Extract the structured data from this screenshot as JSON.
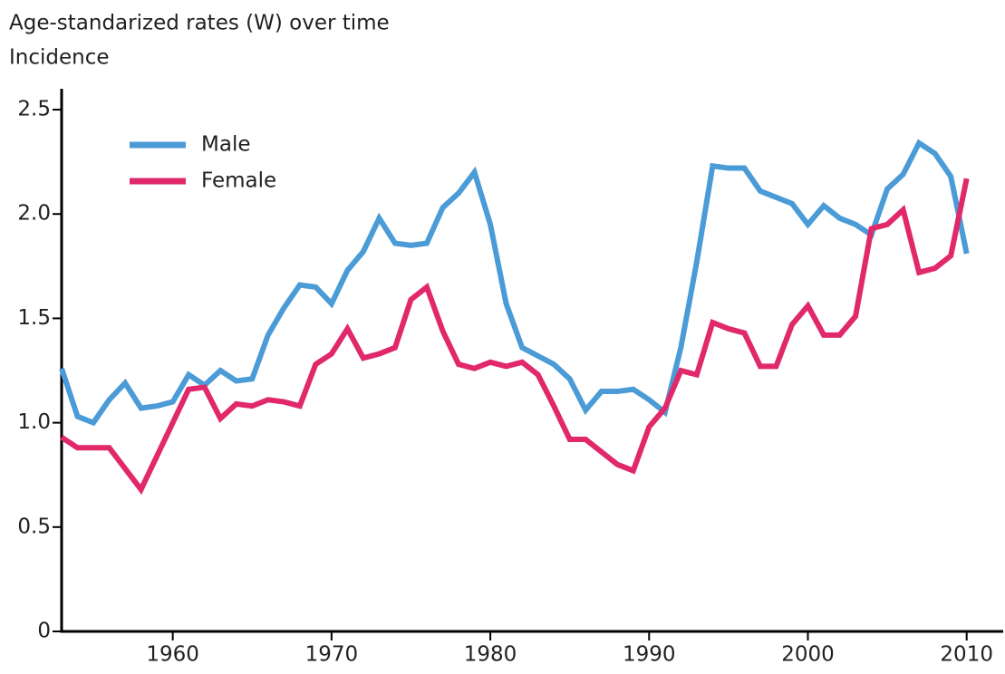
{
  "chart_data": {
    "type": "line",
    "title": "Age-standarized rates (W) over time",
    "subtitle": "Incidence",
    "x": [
      1953,
      1954,
      1955,
      1956,
      1957,
      1958,
      1959,
      1960,
      1961,
      1962,
      1963,
      1964,
      1965,
      1966,
      1967,
      1968,
      1969,
      1970,
      1971,
      1972,
      1973,
      1974,
      1975,
      1976,
      1977,
      1978,
      1979,
      1980,
      1981,
      1982,
      1983,
      1984,
      1985,
      1986,
      1987,
      1988,
      1989,
      1990,
      1991,
      1992,
      1993,
      1994,
      1995,
      1996,
      1997,
      1998,
      1999,
      2000,
      2001,
      2002,
      2003,
      2004,
      2005,
      2006,
      2007,
      2008,
      2009,
      2010
    ],
    "series": [
      {
        "name": "Male",
        "color": "#4b9bd7",
        "values": [
          1.26,
          1.03,
          1.0,
          1.11,
          1.19,
          1.07,
          1.08,
          1.1,
          1.23,
          1.18,
          1.25,
          1.2,
          1.21,
          1.42,
          1.55,
          1.66,
          1.65,
          1.57,
          1.73,
          1.82,
          1.98,
          1.86,
          1.85,
          1.86,
          2.03,
          2.1,
          2.2,
          1.95,
          1.57,
          1.36,
          1.32,
          1.28,
          1.21,
          1.06,
          1.15,
          1.15,
          1.16,
          1.11,
          1.05,
          1.36,
          1.77,
          2.23,
          2.22,
          2.22,
          2.11,
          2.08,
          2.05,
          1.95,
          2.04,
          1.98,
          1.95,
          1.9,
          2.12,
          2.19,
          2.34,
          2.29,
          2.18,
          1.81
        ]
      },
      {
        "name": "Female",
        "color": "#e0286a",
        "values": [
          0.93,
          0.88,
          0.88,
          0.88,
          0.78,
          0.68,
          0.84,
          1.0,
          1.16,
          1.17,
          1.02,
          1.09,
          1.08,
          1.11,
          1.1,
          1.08,
          1.28,
          1.33,
          1.45,
          1.31,
          1.33,
          1.36,
          1.59,
          1.65,
          1.44,
          1.28,
          1.26,
          1.29,
          1.27,
          1.29,
          1.23,
          1.08,
          0.92,
          0.92,
          0.86,
          0.8,
          0.77,
          0.98,
          1.07,
          1.25,
          1.23,
          1.48,
          1.45,
          1.43,
          1.27,
          1.27,
          1.47,
          1.56,
          1.42,
          1.42,
          1.51,
          1.93,
          1.95,
          2.02,
          1.72,
          1.74,
          1.8,
          2.17
        ]
      }
    ],
    "xlim": [
      1953,
      2012.3
    ],
    "xticks": [
      1960,
      1970,
      1980,
      1990,
      2000,
      2010
    ],
    "ylim": [
      0,
      2.6
    ],
    "yticks": [
      0,
      0.5,
      {
        "value": 1,
        "label": "1.0"
      },
      1.5,
      {
        "value": 2,
        "label": "2.0"
      },
      2.5
    ],
    "legend": "upper left",
    "grid": false
  }
}
